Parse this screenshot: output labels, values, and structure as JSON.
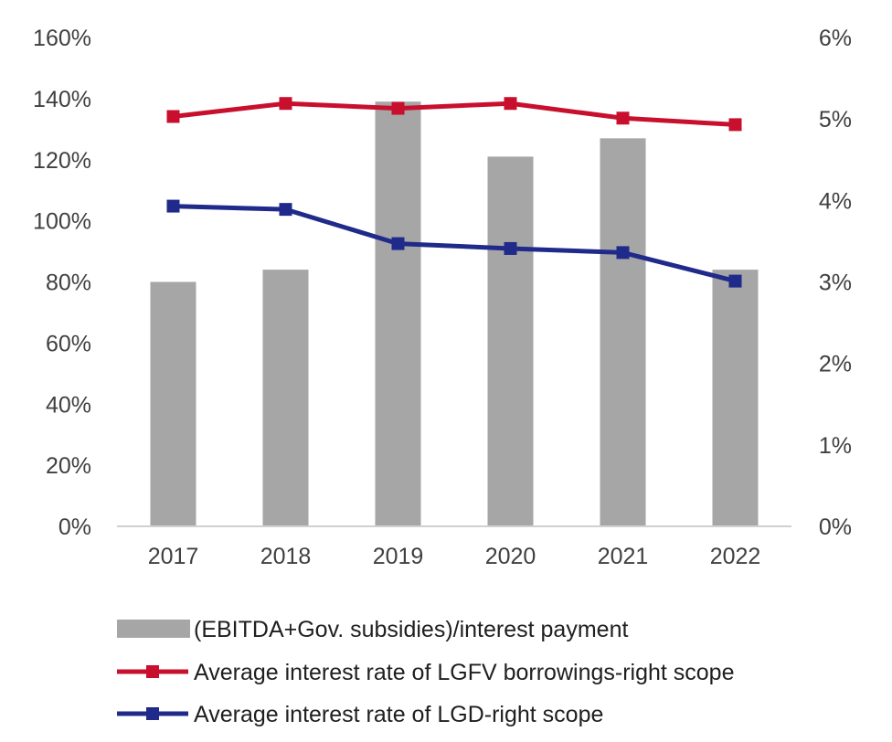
{
  "chart_data": {
    "type": "bar",
    "categories": [
      "2017",
      "2018",
      "2019",
      "2020",
      "2021",
      "2022"
    ],
    "series": [
      {
        "name": "(EBITDA+Gov. subsidies)/interest payment",
        "type": "bar",
        "axis": "left",
        "color": "#a6a6a6",
        "values": [
          80,
          84,
          139,
          121,
          127,
          84
        ]
      },
      {
        "name": "Average interest rate of LGFV borrowings-right scope",
        "type": "line",
        "axis": "right",
        "color": "#c8102e",
        "values": [
          5.03,
          5.19,
          5.13,
          5.19,
          5.01,
          4.93
        ]
      },
      {
        "name": "Average interest rate of LGD-right scope",
        "type": "line",
        "axis": "right",
        "color": "#1f2a8a",
        "values": [
          3.93,
          3.89,
          3.47,
          3.41,
          3.36,
          3.01
        ]
      }
    ],
    "y_left": {
      "ticks": [
        "0%",
        "20%",
        "40%",
        "60%",
        "80%",
        "100%",
        "120%",
        "140%",
        "160%"
      ],
      "ylim": [
        0,
        160
      ]
    },
    "y_right": {
      "ticks": [
        "0%",
        "1%",
        "2%",
        "3%",
        "4%",
        "5%",
        "6%"
      ],
      "ylim": [
        0,
        6
      ]
    },
    "grid": false,
    "legend_position": "bottom"
  }
}
